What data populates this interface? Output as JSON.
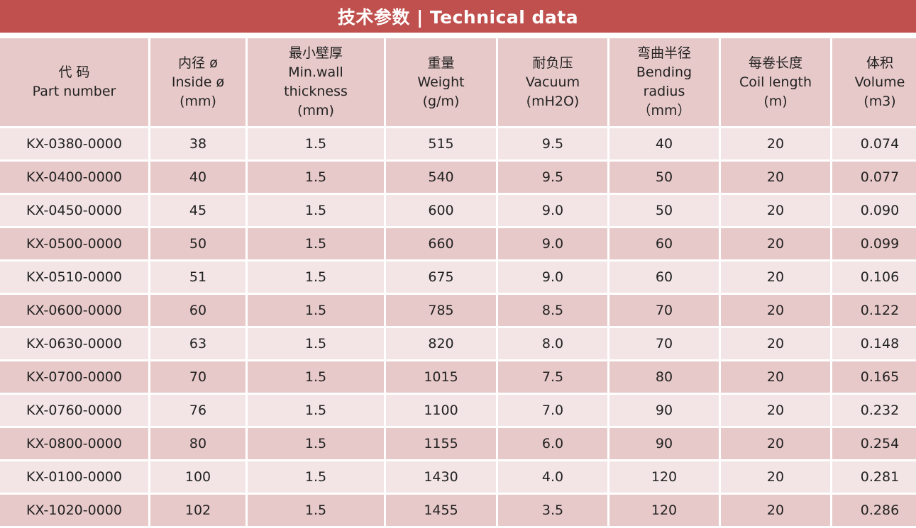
{
  "title": "技术参数 | Technical data",
  "colors": {
    "title_bg": "#c0504d",
    "header_bg": "#e8c9c9",
    "row_light": "#f3e5e5",
    "row_dark": "#e8c9c9"
  },
  "columns": [
    {
      "lines": [
        "代 码",
        "Part number"
      ]
    },
    {
      "lines": [
        "内径 ø",
        "Inside ø",
        "(mm)"
      ]
    },
    {
      "lines": [
        "最小壁厚",
        "Min.wall",
        "thickness",
        "(mm)"
      ]
    },
    {
      "lines": [
        "重量",
        "Weight",
        "(g/m)"
      ]
    },
    {
      "lines": [
        "耐负压",
        "Vacuum",
        "(mH2O)"
      ]
    },
    {
      "lines": [
        "弯曲半径",
        "Bending",
        "radius",
        "（mm）"
      ]
    },
    {
      "lines": [
        "每卷长度",
        "Coil length",
        "(m)"
      ]
    },
    {
      "lines": [
        "体积",
        "Volume",
        "(m3)"
      ]
    }
  ],
  "rows": [
    [
      "KX-0380-0000",
      "38",
      "1.5",
      "515",
      "9.5",
      "40",
      "20",
      "0.074"
    ],
    [
      "KX-0400-0000",
      "40",
      "1.5",
      "540",
      "9.5",
      "50",
      "20",
      "0.077"
    ],
    [
      "KX-0450-0000",
      "45",
      "1.5",
      "600",
      "9.0",
      "50",
      "20",
      "0.090"
    ],
    [
      "KX-0500-0000",
      "50",
      "1.5",
      "660",
      "9.0",
      "60",
      "20",
      "0.099"
    ],
    [
      "KX-0510-0000",
      "51",
      "1.5",
      "675",
      "9.0",
      "60",
      "20",
      "0.106"
    ],
    [
      "KX-0600-0000",
      "60",
      "1.5",
      "785",
      "8.5",
      "70",
      "20",
      "0.122"
    ],
    [
      "KX-0630-0000",
      "63",
      "1.5",
      "820",
      "8.0",
      "70",
      "20",
      "0.148"
    ],
    [
      "KX-0700-0000",
      "70",
      "1.5",
      "1015",
      "7.5",
      "80",
      "20",
      "0.165"
    ],
    [
      "KX-0760-0000",
      "76",
      "1.5",
      "1100",
      "7.0",
      "90",
      "20",
      "0.232"
    ],
    [
      "KX-0800-0000",
      "80",
      "1.5",
      "1155",
      "6.0",
      "90",
      "20",
      "0.254"
    ],
    [
      "KX-0100-0000",
      "100",
      "1.5",
      "1430",
      "4.0",
      "120",
      "20",
      "0.281"
    ],
    [
      "KX-1020-0000",
      "102",
      "1.5",
      "1455",
      "3.5",
      "120",
      "20",
      "0.286"
    ]
  ]
}
